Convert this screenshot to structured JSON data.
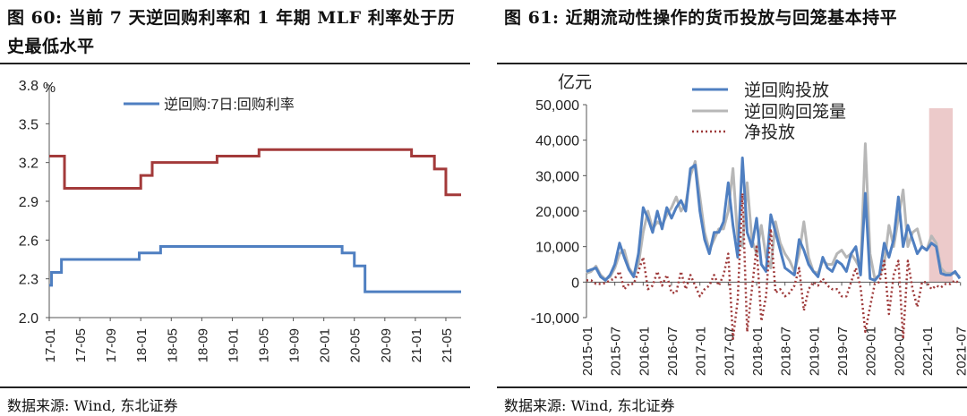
{
  "left": {
    "title": "图 60: 当前 7 天逆回购利率和 1 年期 MLF 利率处于历史最低水平",
    "source": "数据来源: Wind, 东北证券",
    "chart_data": {
      "type": "line",
      "ylabel": "%",
      "ylim": [
        2.0,
        3.8
      ],
      "yticks": [
        "2.0",
        "2.3",
        "2.6",
        "2.9",
        "3.2",
        "3.5",
        "3.8"
      ],
      "xticks": [
        "17-01",
        "17-05",
        "17-09",
        "18-01",
        "18-05",
        "18-09",
        "19-01",
        "19-05",
        "19-09",
        "20-01",
        "20-05",
        "20-09",
        "21-01",
        "21-05"
      ],
      "legend": [
        "逆回购:7日:回购利率"
      ],
      "series": [
        {
          "name": "逆回购:7日:回购利率",
          "color": "#4f7fc1",
          "x": [
            0,
            0.3,
            0.3,
            1.6,
            1.6,
            3.2,
            3.2,
            11.8,
            11.8,
            13.2,
            13.2,
            14.6,
            14.6,
            27.5,
            27.5,
            29.2,
            29.2,
            38.4,
            38.4,
            39.0,
            39.0,
            40.0,
            40.0,
            41.4,
            41.4,
            44.3,
            44.3,
            54.0
          ],
          "y": [
            2.25,
            2.25,
            2.35,
            2.35,
            2.45,
            2.45,
            2.45,
            2.45,
            2.5,
            2.5,
            2.5,
            2.5,
            2.55,
            2.55,
            2.55,
            2.55,
            2.55,
            2.55,
            2.5,
            2.5,
            2.5,
            2.5,
            2.4,
            2.4,
            2.2,
            2.2,
            2.2,
            2.2
          ]
        },
        {
          "color": "#a33a3a",
          "x": [
            0,
            1.0,
            1.0,
            2.0,
            2.0,
            12.0,
            12.0,
            13.5,
            13.5,
            15.0,
            15.0,
            22.0,
            22.0,
            25.0,
            25.0,
            27.5,
            27.5,
            47.5,
            47.5,
            50.5,
            50.5,
            52.0,
            52.0,
            54.0
          ],
          "y": [
            3.25,
            3.25,
            3.25,
            3.25,
            3.0,
            3.0,
            3.1,
            3.1,
            3.2,
            3.2,
            3.2,
            3.2,
            3.25,
            3.25,
            3.25,
            3.25,
            3.3,
            3.3,
            3.25,
            3.25,
            3.15,
            3.15,
            2.95,
            2.95
          ]
        }
      ]
    }
  },
  "right": {
    "title": "图 61: 近期流动性操作的货币投放与回笼基本持平",
    "source": "数据来源: Wind, 东北证券",
    "chart_data": {
      "type": "line",
      "ylabel": "亿元",
      "ylim": [
        -10000,
        50000
      ],
      "yticks": [
        "-10,000",
        "0",
        "10,000",
        "20,000",
        "30,000",
        "40,000",
        "50,000"
      ],
      "xticks": [
        "2015-01",
        "2015-07",
        "2016-01",
        "2016-07",
        "2017-01",
        "2017-07",
        "2018-01",
        "2018-07",
        "2019-01",
        "2019-07",
        "2020-01",
        "2020-07",
        "2021-01",
        "2021-07"
      ],
      "legend": [
        "逆回购投放",
        "逆回购回笼量",
        "净投放"
      ],
      "highlight": {
        "from": 72.5,
        "to": 77.5,
        "color": "#eccaca"
      },
      "series": [
        {
          "name": "逆回购投放",
          "color": "#4f7fc1",
          "values": [
            3000,
            3500,
            4000,
            1500,
            500,
            2000,
            5000,
            11000,
            7000,
            3500,
            1500,
            8000,
            21000,
            18000,
            14000,
            20000,
            15000,
            21000,
            18000,
            21000,
            23000,
            20000,
            32000,
            33000,
            20000,
            12000,
            8000,
            14000,
            14000,
            17000,
            28000,
            16000,
            7000,
            35000,
            14000,
            10000,
            18000,
            5000,
            3000,
            19000,
            14000,
            9000,
            4000,
            3000,
            2000,
            12000,
            9000,
            5000,
            3000,
            1500,
            7000,
            4000,
            3000,
            6000,
            5000,
            3000,
            8000,
            10000,
            2000,
            25000,
            1000,
            500,
            2000,
            11000,
            7000,
            12000,
            24000,
            10000,
            16000,
            12000,
            8000,
            10000,
            9000,
            11000,
            10000,
            2500,
            2000,
            2000,
            3000,
            1000
          ]
        },
        {
          "name": "逆回购回笼量",
          "color": "#b7b7b7",
          "values": [
            2500,
            3000,
            4500,
            2000,
            800,
            1500,
            4000,
            8000,
            9000,
            4000,
            2000,
            5000,
            14000,
            20000,
            15000,
            17000,
            16000,
            19000,
            21000,
            24000,
            20000,
            22000,
            30000,
            34000,
            24000,
            14000,
            9000,
            12000,
            15000,
            15000,
            20000,
            32000,
            12000,
            10000,
            28000,
            12000,
            8000,
            16000,
            7000,
            4000,
            17000,
            11000,
            8000,
            6000,
            3000,
            8000,
            17000,
            7000,
            3000,
            2500,
            6000,
            5000,
            5000,
            8000,
            9000,
            7000,
            8000,
            6000,
            3500,
            39000,
            8000,
            1000,
            2000,
            5000,
            16000,
            10000,
            18000,
            26000,
            10000,
            14000,
            15000,
            10000,
            9000,
            13000,
            11000,
            4000,
            2500,
            2500,
            2500,
            1500
          ]
        },
        {
          "name": "净投放",
          "color": "#9e3a3a",
          "values": [
            500,
            500,
            -500,
            -500,
            -300,
            500,
            1000,
            3000,
            -2000,
            -500,
            -500,
            3000,
            7000,
            -2000,
            -1000,
            3000,
            -1000,
            2000,
            -3000,
            -3000,
            3000,
            -2000,
            2000,
            -1000,
            -4000,
            -2000,
            -1000,
            2000,
            -1000,
            2000,
            8000,
            -16000,
            -5000,
            25000,
            -14000,
            -2000,
            10000,
            -11000,
            -4000,
            15000,
            -3000,
            -2000,
            -4000,
            -3000,
            -1000,
            4000,
            -8000,
            -2000,
            0,
            -1000,
            1000,
            -1000,
            -2000,
            -2000,
            -4000,
            -4000,
            0,
            4000,
            -1500,
            -14000,
            -7000,
            -500,
            0,
            6000,
            -9000,
            2000,
            6000,
            -16000,
            6000,
            -2000,
            -7000,
            0,
            0,
            -2000,
            -1000,
            -1500,
            -500,
            -500,
            500,
            -500
          ]
        }
      ]
    }
  }
}
